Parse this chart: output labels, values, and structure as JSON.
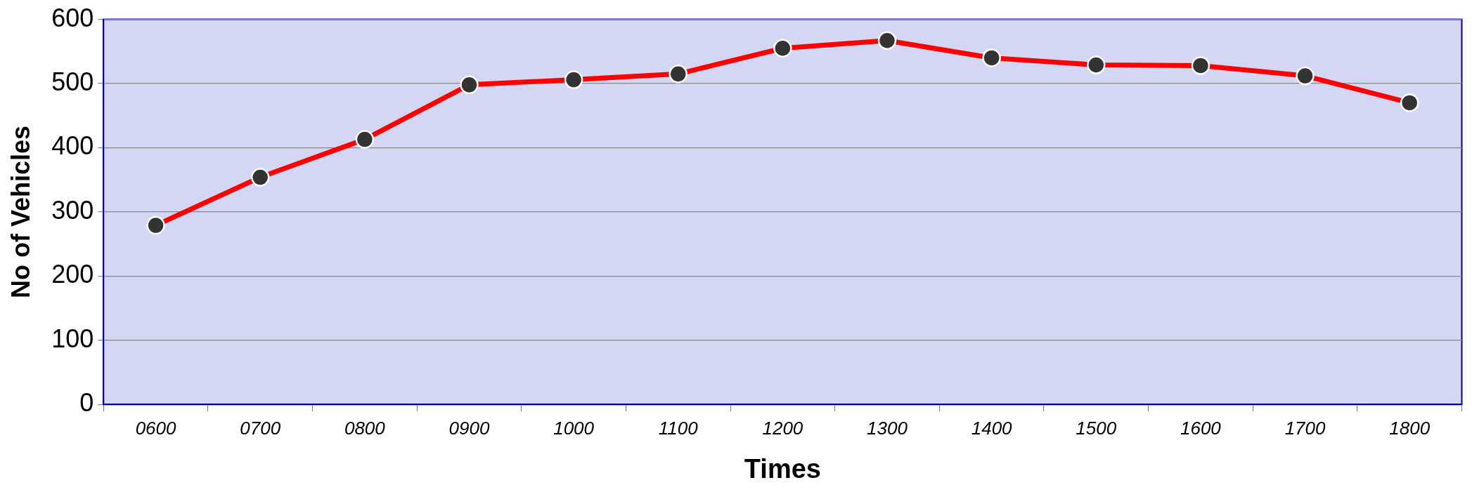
{
  "chart_data": {
    "type": "line",
    "xlabel": "Times",
    "ylabel": "No of Vehicles",
    "categories": [
      "0600",
      "0700",
      "0800",
      "0900",
      "1000",
      "1100",
      "1200",
      "1300",
      "1400",
      "1500",
      "1600",
      "1700",
      "1800"
    ],
    "series": [
      {
        "color": "#ff0000",
        "values": [
          279,
          354,
          413,
          498,
          506,
          515,
          555,
          567,
          540,
          529,
          528,
          512,
          470
        ]
      }
    ],
    "ylim": [
      0,
      600
    ],
    "yticks": [
      0,
      100,
      200,
      300,
      400,
      500,
      600
    ],
    "grid": "y",
    "legend": false,
    "marker": "circle",
    "line_style": "solid"
  }
}
